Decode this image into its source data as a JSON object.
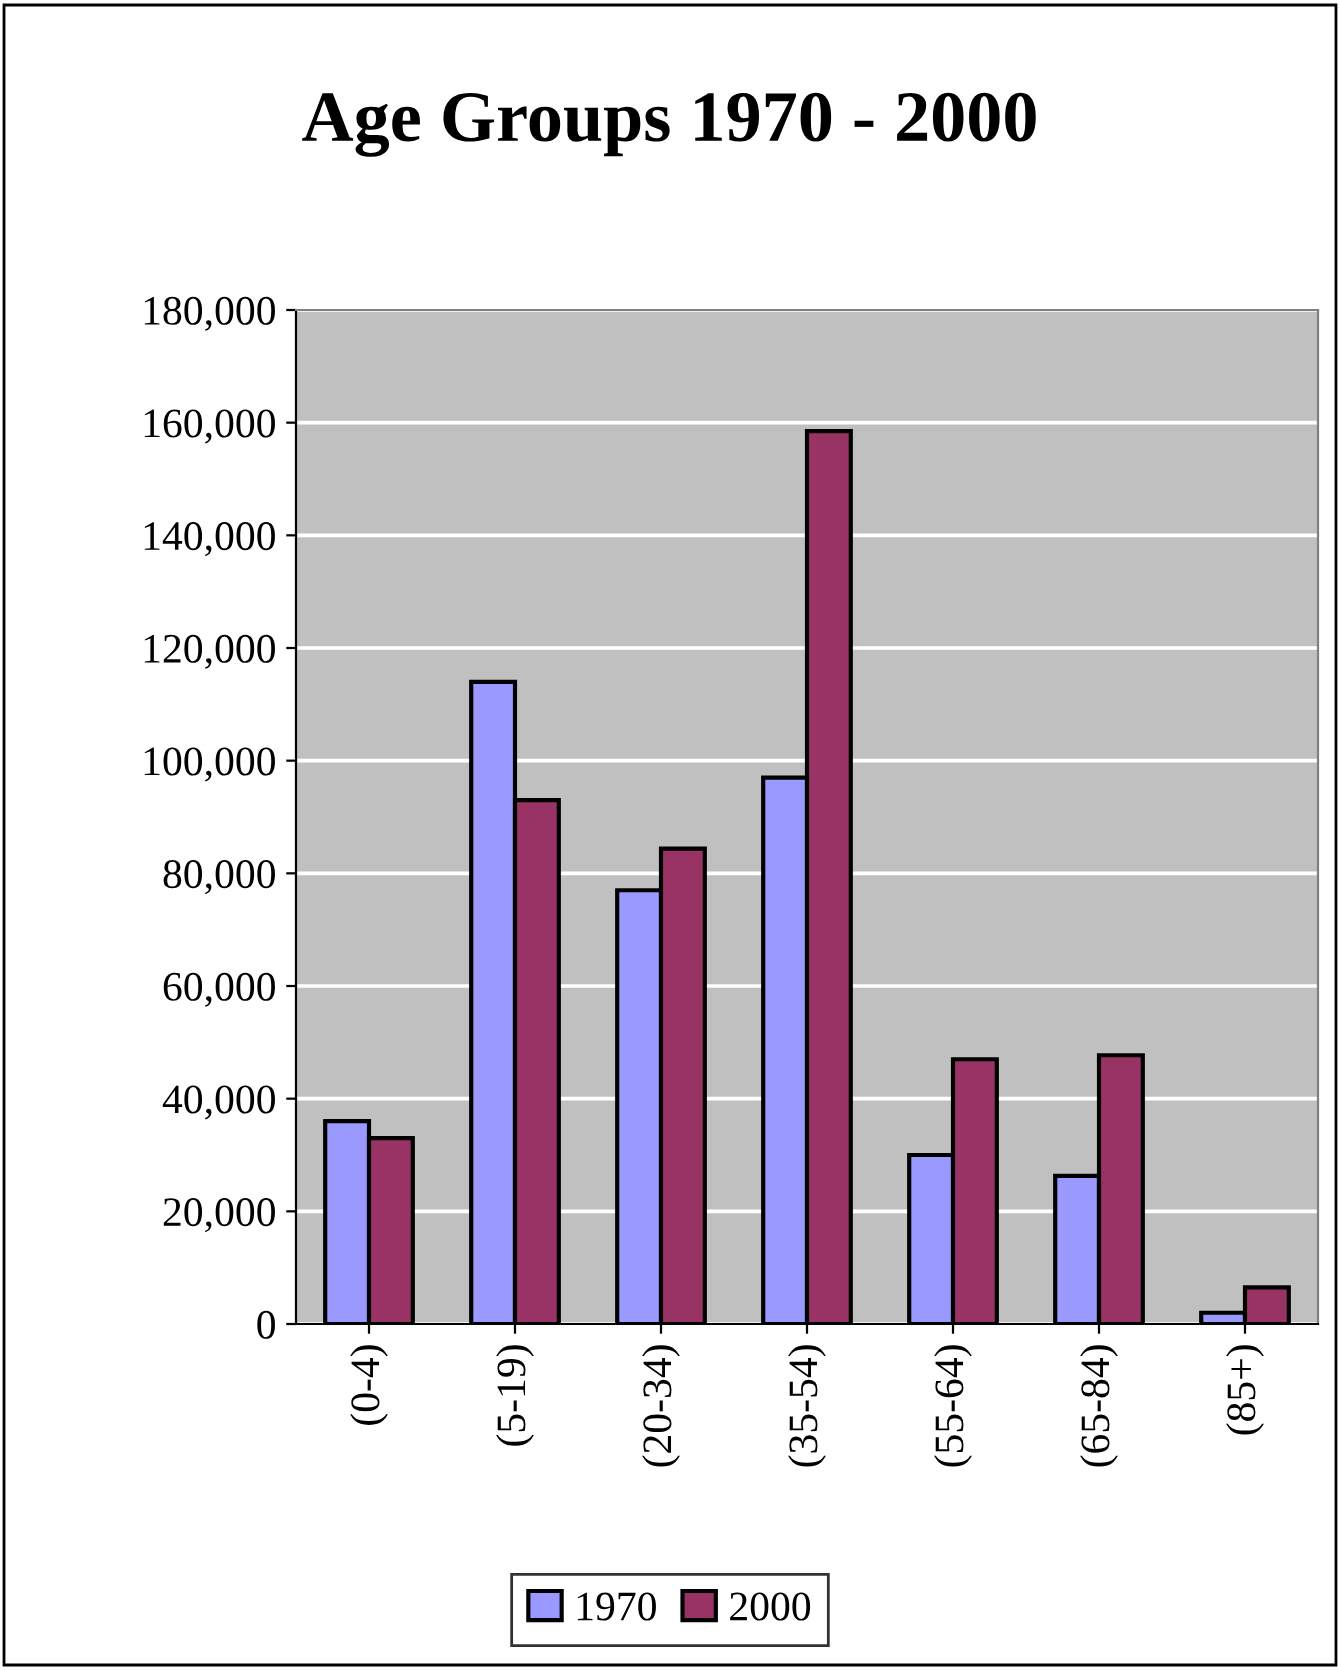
{
  "chart_data": {
    "type": "bar",
    "title": "Age Groups 1970 - 2000",
    "categories": [
      "(0-4)",
      "(5-19)",
      "(20-34)",
      "(35-54)",
      "(55-64)",
      "(65-84)",
      "(85+)"
    ],
    "series": [
      {
        "name": "1970",
        "color": "#9999ff",
        "values": [
          36000,
          114000,
          77000,
          97000,
          30000,
          26300,
          2000
        ]
      },
      {
        "name": "2000",
        "color": "#993366",
        "values": [
          33000,
          93000,
          84400,
          158500,
          47000,
          47700,
          6500
        ]
      }
    ],
    "ylim": [
      0,
      180000
    ],
    "yticks": [
      {
        "value": 0,
        "label": "0"
      },
      {
        "value": 20000,
        "label": "20,000"
      },
      {
        "value": 40000,
        "label": "40,000"
      },
      {
        "value": 60000,
        "label": "60,000"
      },
      {
        "value": 80000,
        "label": "80,000"
      },
      {
        "value": 100000,
        "label": "100,000"
      },
      {
        "value": 120000,
        "label": "120,000"
      },
      {
        "value": 140000,
        "label": "140,000"
      },
      {
        "value": 160000,
        "label": "160,000"
      },
      {
        "value": 180000,
        "label": "180,000"
      }
    ],
    "grid": "y",
    "legend": "bottom"
  }
}
